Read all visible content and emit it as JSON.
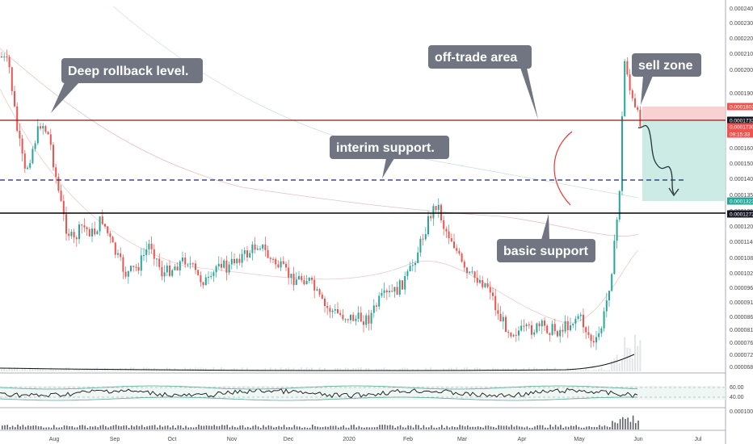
{
  "chart_data": {
    "type": "candlestick",
    "price_axis": {
      "ticks": [
        "0.0002400",
        "0.0002300",
        "0.0002200",
        "0.0002100",
        "0.0002000",
        "0.0001900",
        "0.0001700",
        "0.0001600",
        "0.0001500",
        "0.0001400",
        "0.0001350",
        "0.0001250",
        "0.0001200",
        "0.0001140",
        "0.0001080",
        "0.0001020",
        "0.0000960",
        "0.0000910",
        "0.0000860",
        "0.0000810",
        "0.0000765",
        "0.0000720",
        "0.0000680"
      ],
      "tags": [
        {
          "text": "0.0001803",
          "color": "#ef5350"
        },
        {
          "text": "0.0001732",
          "color": "#131722"
        },
        {
          "text": "0.0001730",
          "color": "#ef5350"
        },
        {
          "text": "09:15:33",
          "color": "#ef5350"
        },
        {
          "text": "0.0001323",
          "color": "#26a69a"
        },
        {
          "text": "0.0001272",
          "color": "#131722"
        }
      ]
    },
    "oscillator_axis": {
      "ticks": [
        "60.00",
        "40.00"
      ]
    },
    "volume_axis": {
      "ticks": [
        "0.0001000"
      ]
    },
    "time_axis": {
      "ticks": [
        "Aug",
        "Sep",
        "Oct",
        "Nov",
        "Dec",
        "2020",
        "Feb",
        "Mar",
        "Apr",
        "May",
        "Jun",
        "Jul"
      ]
    },
    "levels": [
      {
        "value": 0.0001732,
        "style": "solid",
        "color": "#8b1a1a"
      },
      {
        "value": 0.000145,
        "style": "dashed",
        "color": "#1a237e"
      },
      {
        "value": 0.0001272,
        "style": "solid",
        "color": "#000000"
      }
    ],
    "position": {
      "entry": 0.000173,
      "stop": 0.0001803,
      "target": 0.0001323
    },
    "annotations": [
      {
        "text": "Deep rollback level."
      },
      {
        "text": "off-trade area"
      },
      {
        "text": "sell zone"
      },
      {
        "text": "interim support."
      },
      {
        "text": "basic support"
      }
    ]
  }
}
